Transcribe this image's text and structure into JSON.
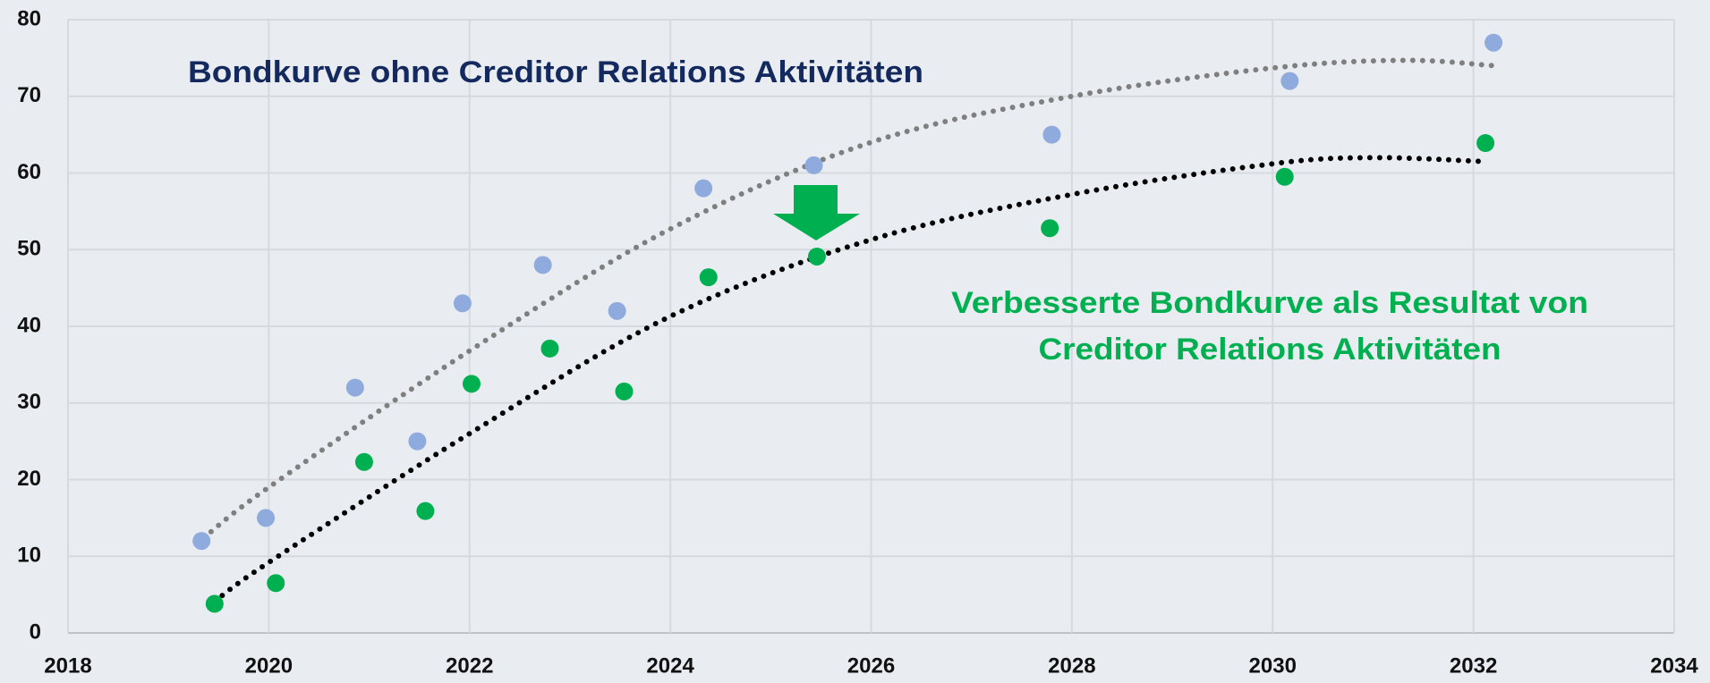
{
  "chart_data": {
    "type": "scatter",
    "annotations": [
      "Bondkurve ohne Creditor Relations Aktivitäten",
      "Verbesserte Bondkurve als Resultat von",
      "Creditor Relations Aktivitäten"
    ],
    "xlim": [
      2018,
      2034
    ],
    "xticks": [
      2018,
      2020,
      2022,
      2024,
      2026,
      2028,
      2030,
      2032,
      2034
    ],
    "ylim": [
      0,
      80
    ],
    "yticks": [
      0,
      10,
      20,
      30,
      40,
      50,
      60,
      70,
      80
    ],
    "grid": true,
    "series": [
      {
        "color": "#8faadc",
        "x": [
          2019.33,
          2019.97,
          2020.86,
          2021.48,
          2021.93,
          2022.73,
          2023.47,
          2024.33,
          2025.43,
          2027.8,
          2030.17,
          2032.2
        ],
        "values": [
          12,
          15,
          32,
          25,
          43,
          48,
          42,
          58,
          61,
          65,
          72,
          77
        ]
      },
      {
        "color": "#00b050",
        "x": [
          2019.46,
          2020.07,
          2020.95,
          2021.56,
          2022.02,
          2022.8,
          2023.54,
          2024.38,
          2025.46,
          2027.78,
          2030.12,
          2032.12
        ],
        "values": [
          3.8,
          6.5,
          22.3,
          15.9,
          32.5,
          37.1,
          31.5,
          46.4,
          49.1,
          52.8,
          59.5,
          63.9
        ]
      }
    ],
    "trendlines": [
      {
        "color": "#7f7f7f",
        "x": [
          2019.35,
          2020,
          2022,
          2024,
          2026,
          2028,
          2030,
          2031.3,
          2032.2
        ],
        "values": [
          12.4,
          19,
          36.8,
          52.7,
          64,
          70,
          73.7,
          74.7,
          74
        ]
      },
      {
        "color": "#000000",
        "x": [
          2019.46,
          2020,
          2022,
          2024,
          2026,
          2028,
          2030,
          2031,
          2032.1
        ],
        "values": [
          4.1,
          9.2,
          26,
          41.3,
          51.3,
          57.2,
          61.2,
          62,
          61.5
        ]
      }
    ]
  }
}
